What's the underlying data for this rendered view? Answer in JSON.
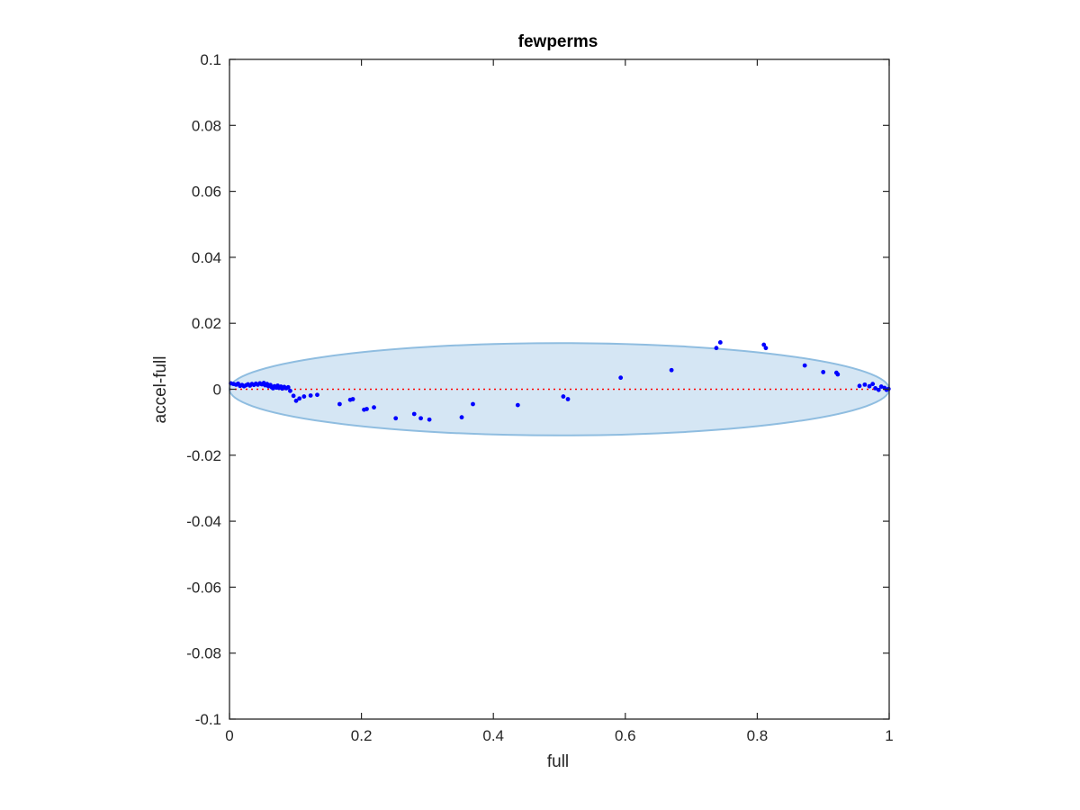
{
  "chart_data": {
    "type": "scatter",
    "title": "fewperms",
    "xlabel": "full",
    "ylabel": "accel-full",
    "xlim": [
      0,
      1
    ],
    "ylim": [
      -0.1,
      0.1
    ],
    "xticks": [
      0,
      0.2,
      0.4,
      0.6,
      0.8,
      1
    ],
    "xtick_labels": [
      "0",
      "0.2",
      "0.4",
      "0.6",
      "0.8",
      "1"
    ],
    "yticks": [
      -0.1,
      -0.08,
      -0.06,
      -0.04,
      -0.02,
      0,
      0.02,
      0.04,
      0.06,
      0.08,
      0.1
    ],
    "ytick_labels": [
      "-0.1",
      "-0.08",
      "-0.06",
      "-0.04",
      "-0.02",
      "0",
      "0.02",
      "0.04",
      "0.06",
      "0.08",
      "0.1"
    ],
    "grid": false,
    "reference_line": {
      "y": 0,
      "style": "dotted",
      "color": "#ff0000"
    },
    "ellipse": {
      "cx": 0.5,
      "cy": 0,
      "rx": 0.5,
      "ry": 0.014,
      "fill": "#d5e6f4",
      "stroke": "#8fbde0"
    },
    "marker_color": "#0000ff",
    "points": [
      [
        0.002,
        0.0018
      ],
      [
        0.006,
        0.0016
      ],
      [
        0.01,
        0.0014
      ],
      [
        0.013,
        0.0017
      ],
      [
        0.016,
        0.001
      ],
      [
        0.019,
        0.0013
      ],
      [
        0.022,
        0.0009
      ],
      [
        0.025,
        0.0012
      ],
      [
        0.028,
        0.0015
      ],
      [
        0.031,
        0.0011
      ],
      [
        0.034,
        0.0016
      ],
      [
        0.037,
        0.0013
      ],
      [
        0.04,
        0.0017
      ],
      [
        0.043,
        0.0014
      ],
      [
        0.046,
        0.0018
      ],
      [
        0.049,
        0.0015
      ],
      [
        0.052,
        0.0019
      ],
      [
        0.054,
        0.0012
      ],
      [
        0.057,
        0.0016
      ],
      [
        0.059,
        0.0009
      ],
      [
        0.062,
        0.0013
      ],
      [
        0.064,
        0.0006
      ],
      [
        0.066,
        0.0003
      ],
      [
        0.068,
        0.0009
      ],
      [
        0.071,
        0.0005
      ],
      [
        0.073,
        0.0011
      ],
      [
        0.075,
        0.0004
      ],
      [
        0.078,
        0.0008
      ],
      [
        0.08,
        0.0002
      ],
      [
        0.083,
        0.0007
      ],
      [
        0.086,
        0.0003
      ],
      [
        0.089,
        0.0006
      ],
      [
        0.092,
        -0.0005
      ],
      [
        0.097,
        -0.002
      ],
      [
        0.101,
        -0.0035
      ],
      [
        0.106,
        -0.0028
      ],
      [
        0.113,
        -0.0022
      ],
      [
        0.123,
        -0.0019
      ],
      [
        0.133,
        -0.0017
      ],
      [
        0.167,
        -0.0045
      ],
      [
        0.183,
        -0.0032
      ],
      [
        0.187,
        -0.003
      ],
      [
        0.204,
        -0.0062
      ],
      [
        0.208,
        -0.006
      ],
      [
        0.219,
        -0.0055
      ],
      [
        0.252,
        -0.0088
      ],
      [
        0.28,
        -0.0075
      ],
      [
        0.29,
        -0.0088
      ],
      [
        0.303,
        -0.0092
      ],
      [
        0.352,
        -0.0085
      ],
      [
        0.369,
        -0.0045
      ],
      [
        0.437,
        -0.0048
      ],
      [
        0.506,
        -0.0022
      ],
      [
        0.513,
        -0.003
      ],
      [
        0.593,
        0.0035
      ],
      [
        0.67,
        0.0058
      ],
      [
        0.738,
        0.0125
      ],
      [
        0.744,
        0.0142
      ],
      [
        0.81,
        0.0135
      ],
      [
        0.813,
        0.0125
      ],
      [
        0.872,
        0.0072
      ],
      [
        0.9,
        0.0052
      ],
      [
        0.92,
        0.005
      ],
      [
        0.922,
        0.0045
      ],
      [
        0.955,
        0.001
      ],
      [
        0.963,
        0.0014
      ],
      [
        0.97,
        0.0009
      ],
      [
        0.975,
        0.0016
      ],
      [
        0.979,
        0.0003
      ],
      [
        0.984,
        -0.0002
      ],
      [
        0.988,
        0.0008
      ],
      [
        0.993,
        0.0004
      ],
      [
        0.996,
        -0.0002
      ],
      [
        0.999,
        0.0001
      ]
    ]
  }
}
